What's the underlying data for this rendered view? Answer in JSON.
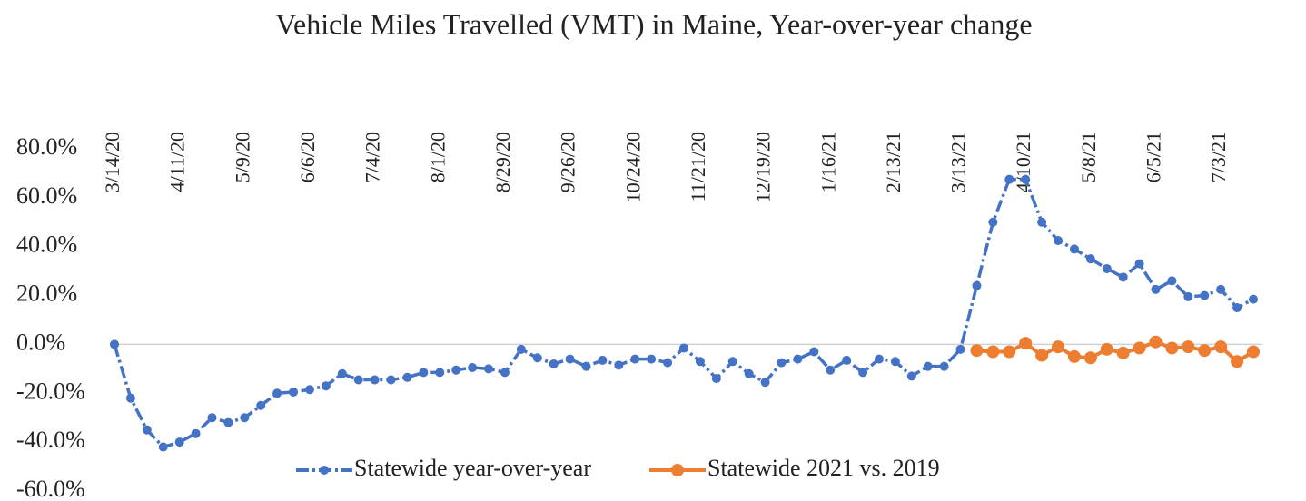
{
  "chart_data": {
    "type": "line",
    "title": "Vehicle Miles Travelled (VMT) in Maine, Year-over-year change",
    "categories": [
      "3/14/20",
      null,
      null,
      null,
      "4/11/20",
      null,
      null,
      null,
      "5/9/20",
      null,
      null,
      null,
      "6/6/20",
      null,
      null,
      null,
      "7/4/20",
      null,
      null,
      null,
      "8/1/20",
      null,
      null,
      null,
      "8/29/20",
      null,
      null,
      null,
      "9/26/20",
      null,
      null,
      null,
      "10/24/20",
      null,
      null,
      null,
      "11/21/20",
      null,
      null,
      null,
      "12/19/20",
      null,
      null,
      null,
      "1/16/21",
      null,
      null,
      null,
      "2/13/21",
      null,
      null,
      null,
      "3/13/21",
      null,
      null,
      null,
      "4/10/21",
      null,
      null,
      null,
      "5/8/21",
      null,
      null,
      null,
      "6/5/21",
      null,
      null,
      null,
      "7/3/21",
      null,
      null
    ],
    "series": [
      {
        "name": "Statewide year-over-year",
        "color": "#4472c4",
        "values": [
          0,
          -22,
          -35,
          -42,
          -40,
          -36.5,
          -30,
          -32,
          -30,
          -25,
          -20,
          -19.5,
          -18.5,
          -17,
          -12,
          -14.5,
          -14.5,
          -14.5,
          -13.5,
          -11.5,
          -11.5,
          -10.5,
          -9.5,
          -10,
          -11.5,
          -2,
          -5.5,
          -8,
          -6,
          -9,
          -6.5,
          -8.5,
          -6,
          -6,
          -7.5,
          -1.5,
          -7,
          -14,
          -7,
          -12,
          -15.5,
          -7.5,
          -6,
          -3,
          -10.5,
          -6.5,
          -11.5,
          -6,
          -7,
          -13,
          -9,
          -9,
          -2,
          24,
          50,
          67.5,
          67.5,
          50,
          42.5,
          39,
          35,
          31,
          27.5,
          33,
          22.5,
          26,
          19.5,
          20,
          22.5,
          15,
          18.5
        ]
      },
      {
        "name": "Statewide 2021 vs. 2019",
        "color": "#ed7d31",
        "values": [
          null,
          null,
          null,
          null,
          null,
          null,
          null,
          null,
          null,
          null,
          null,
          null,
          null,
          null,
          null,
          null,
          null,
          null,
          null,
          null,
          null,
          null,
          null,
          null,
          null,
          null,
          null,
          null,
          null,
          null,
          null,
          null,
          null,
          null,
          null,
          null,
          null,
          null,
          null,
          null,
          null,
          null,
          null,
          null,
          null,
          null,
          null,
          null,
          null,
          null,
          null,
          null,
          null,
          -2.5,
          -3,
          -3,
          0.5,
          -4.5,
          -1,
          -5,
          -5.5,
          -2,
          -3.5,
          -1.5,
          1,
          -1.5,
          -1,
          -2.5,
          -1,
          -7,
          -3
        ]
      }
    ],
    "ylim": [
      -60,
      80
    ],
    "yticks": [
      {
        "value": -60,
        "label": "-60.0%"
      },
      {
        "value": -40,
        "label": "-40.0%"
      },
      {
        "value": -20,
        "label": "-20.0%"
      },
      {
        "value": 0,
        "label": "0.0%"
      },
      {
        "value": 20,
        "label": "20.0%"
      },
      {
        "value": 40,
        "label": "40.0%"
      },
      {
        "value": 60,
        "label": "60.0%"
      },
      {
        "value": 80,
        "label": "80.0%"
      }
    ],
    "legend": "bottom"
  }
}
